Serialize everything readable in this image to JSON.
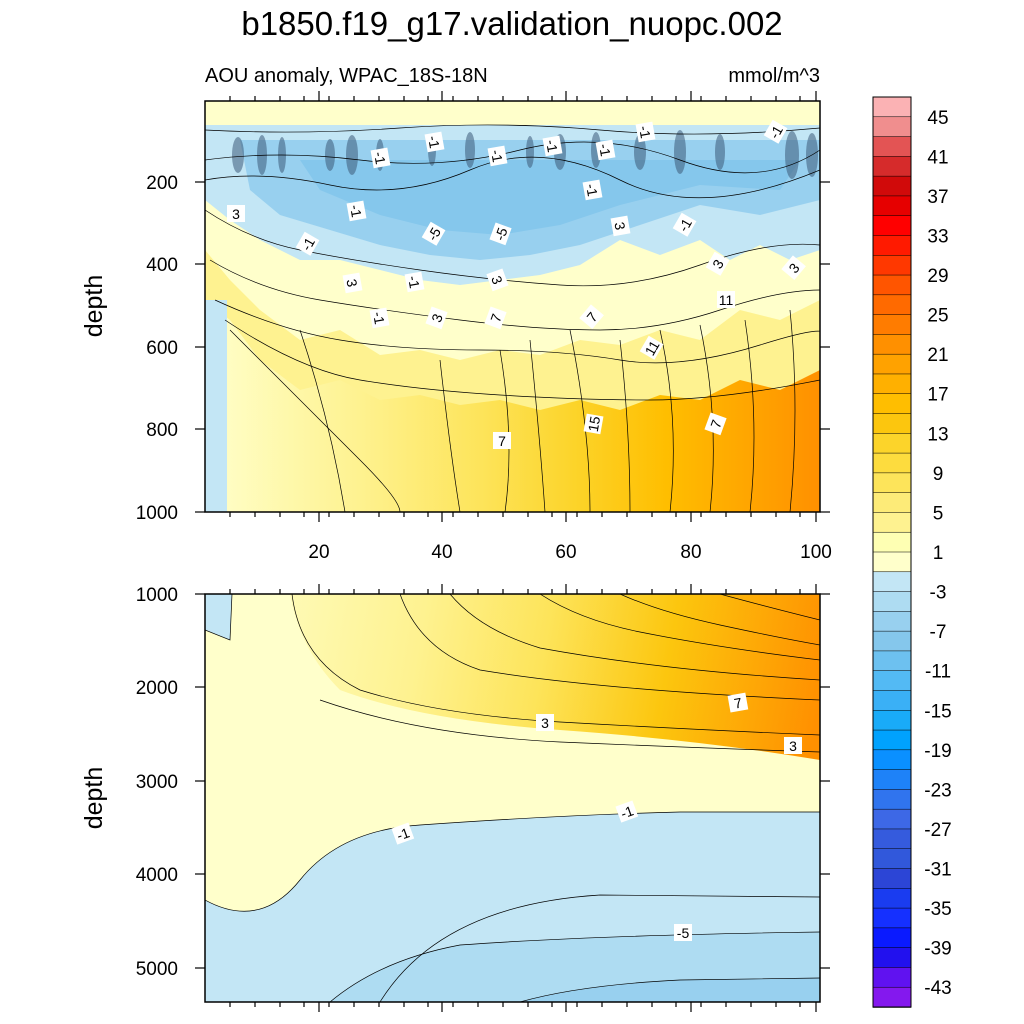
{
  "chart_data": {
    "type": "heatmap",
    "title": "b1850.f19_g17.validation_nuopc.002",
    "subtitle": "AOU anomaly, WPAC_18S-18N",
    "units": "mmol/m^3",
    "colorbar": {
      "labels": [
        "45",
        "41",
        "37",
        "33",
        "29",
        "25",
        "21",
        "17",
        "13",
        "9",
        "5",
        "1",
        "-3",
        "-7",
        "-11",
        "-15",
        "-19",
        "-23",
        "-27",
        "-31",
        "-35",
        "-39",
        "-43"
      ],
      "colors": [
        "#fbb2b4",
        "#f08e8e",
        "#e35454",
        "#d62b2b",
        "#d10a0a",
        "#e60000",
        "#ff0000",
        "#ff1a00",
        "#ff3800",
        "#ff5500",
        "#ff6a00",
        "#ff7c00",
        "#ff9000",
        "#ffa200",
        "#ffb000",
        "#ffbe00",
        "#fcc60e",
        "#fcd42a",
        "#fddc3e",
        "#fde45a",
        "#fdeb78",
        "#fef290",
        "#feffb3",
        "#ffffcb",
        "#c3e6f5",
        "#aedcf2",
        "#98d0ef",
        "#85c7ec",
        "#6dc1f0",
        "#53baf4",
        "#3ab0f6",
        "#19abf8",
        "#00a2fe",
        "#0a90ff",
        "#1e82f8",
        "#3074ee",
        "#3d68e6",
        "#355bdd",
        "#3158db",
        "#2c45d6",
        "#1a3cf0",
        "#1530ff",
        "#0a1aff",
        "#2211ee",
        "#6012f0",
        "#8418ee"
      ]
    },
    "panels": [
      {
        "ylabel": "depth",
        "ylim": [
          1000,
          0
        ],
        "xlim": [
          1,
          101
        ],
        "xticklabels": [
          "20",
          "40",
          "60",
          "80",
          "100"
        ],
        "yticklabels": [
          "200",
          "400",
          "600",
          "800",
          "1000"
        ],
        "contour_labels": [
          "3",
          "-1",
          "-1",
          "-1",
          "-1",
          "-1",
          "-1",
          "-1",
          "-1",
          "-1",
          "-5",
          "-5",
          "-1",
          "-1",
          "3",
          "-1",
          "3",
          "3",
          "3",
          "3",
          "-1",
          "3",
          "7",
          "7",
          "11",
          "11",
          "15",
          "7"
        ]
      },
      {
        "ylabel": "depth",
        "ylim": [
          5350,
          1000
        ],
        "xlim": [
          1,
          101
        ],
        "yticklabels": [
          "1000",
          "2000",
          "3000",
          "4000",
          "5000"
        ],
        "contour_labels": [
          "7",
          "3",
          "3",
          "-1",
          "-1",
          "-5"
        ]
      }
    ]
  }
}
